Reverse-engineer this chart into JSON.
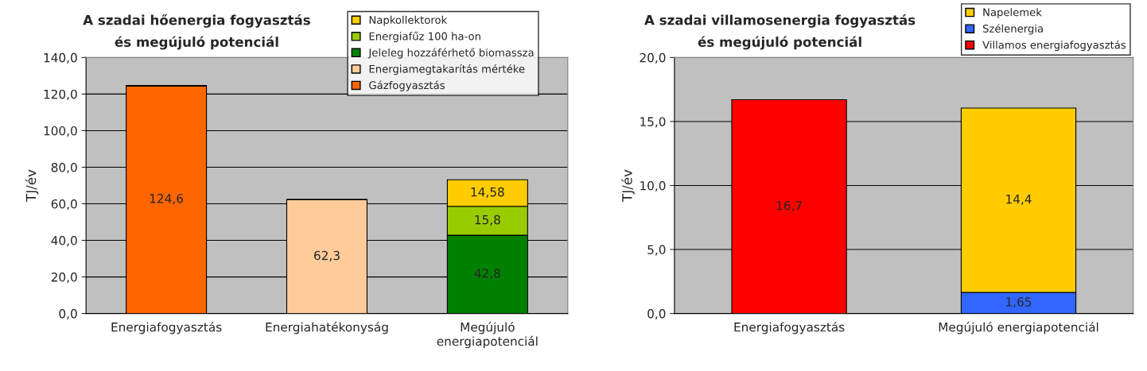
{
  "chart_data": [
    {
      "type": "bar",
      "stacked": true,
      "title": "A szadai hőenergia fogyasztás\nés megújuló potenciál",
      "ylabel": "TJ/év",
      "categories": [
        "Energiafogyasztás",
        "Energiahatékonyság",
        "Megújuló\nenergiapotenciál"
      ],
      "series": [
        {
          "name": "Gázfogyasztás",
          "color": "#ff6600",
          "values": [
            124.6,
            null,
            null
          ],
          "value_labels": [
            "124,6",
            null,
            null
          ]
        },
        {
          "name": "Energiamegtakarítás mértéke",
          "color": "#ffcc99",
          "values": [
            null,
            62.3,
            null
          ],
          "value_labels": [
            null,
            "62,3",
            null
          ]
        },
        {
          "name": "Jeleleg hozzáférhető biomassza",
          "color": "#008000",
          "values": [
            null,
            null,
            42.8
          ],
          "value_labels": [
            null,
            null,
            "42,8"
          ]
        },
        {
          "name": "Energiafűz 100 ha-on",
          "color": "#99cc00",
          "values": [
            null,
            null,
            15.8
          ],
          "value_labels": [
            null,
            null,
            "15,8"
          ]
        },
        {
          "name": "Napkollektorok",
          "color": "#ffcc00",
          "values": [
            null,
            null,
            14.58
          ],
          "value_labels": [
            null,
            null,
            "14,58"
          ]
        }
      ],
      "ylim": [
        0,
        140
      ],
      "yticks": [
        {
          "value": 0,
          "label": "0,0"
        },
        {
          "value": 20,
          "label": "20,0"
        },
        {
          "value": 40,
          "label": "40,0"
        },
        {
          "value": 60,
          "label": "60,0"
        },
        {
          "value": 80,
          "label": "80,0"
        },
        {
          "value": 100,
          "label": "100,0"
        },
        {
          "value": 120,
          "label": "120,0"
        },
        {
          "value": 140,
          "label": "140,0"
        }
      ],
      "grid": "y",
      "legend": "top right"
    },
    {
      "type": "bar",
      "stacked": true,
      "title": "A szadai villamosenergia fogyasztás\nés megújuló potenciál",
      "ylabel": "TJ/év",
      "categories": [
        "Energiafogyasztás",
        "Megújuló energiapotenciál"
      ],
      "series": [
        {
          "name": "Villamos energiafogyasztás",
          "color": "#ff0000",
          "values": [
            16.7,
            null
          ],
          "value_labels": [
            "16,7",
            null
          ]
        },
        {
          "name": "Szélenergia",
          "color": "#3366ff",
          "values": [
            null,
            1.65
          ],
          "value_labels": [
            null,
            "1,65"
          ]
        },
        {
          "name": "Napelemek",
          "color": "#ffcc00",
          "values": [
            null,
            14.4
          ],
          "value_labels": [
            null,
            "14,4"
          ]
        }
      ],
      "ylim": [
        0,
        20
      ],
      "yticks": [
        {
          "value": 0,
          "label": "0,0"
        },
        {
          "value": 5,
          "label": "5,0"
        },
        {
          "value": 10,
          "label": "10,0"
        },
        {
          "value": 15,
          "label": "15,0"
        },
        {
          "value": 20,
          "label": "20,0"
        }
      ],
      "grid": "y",
      "legend": "top right"
    }
  ]
}
